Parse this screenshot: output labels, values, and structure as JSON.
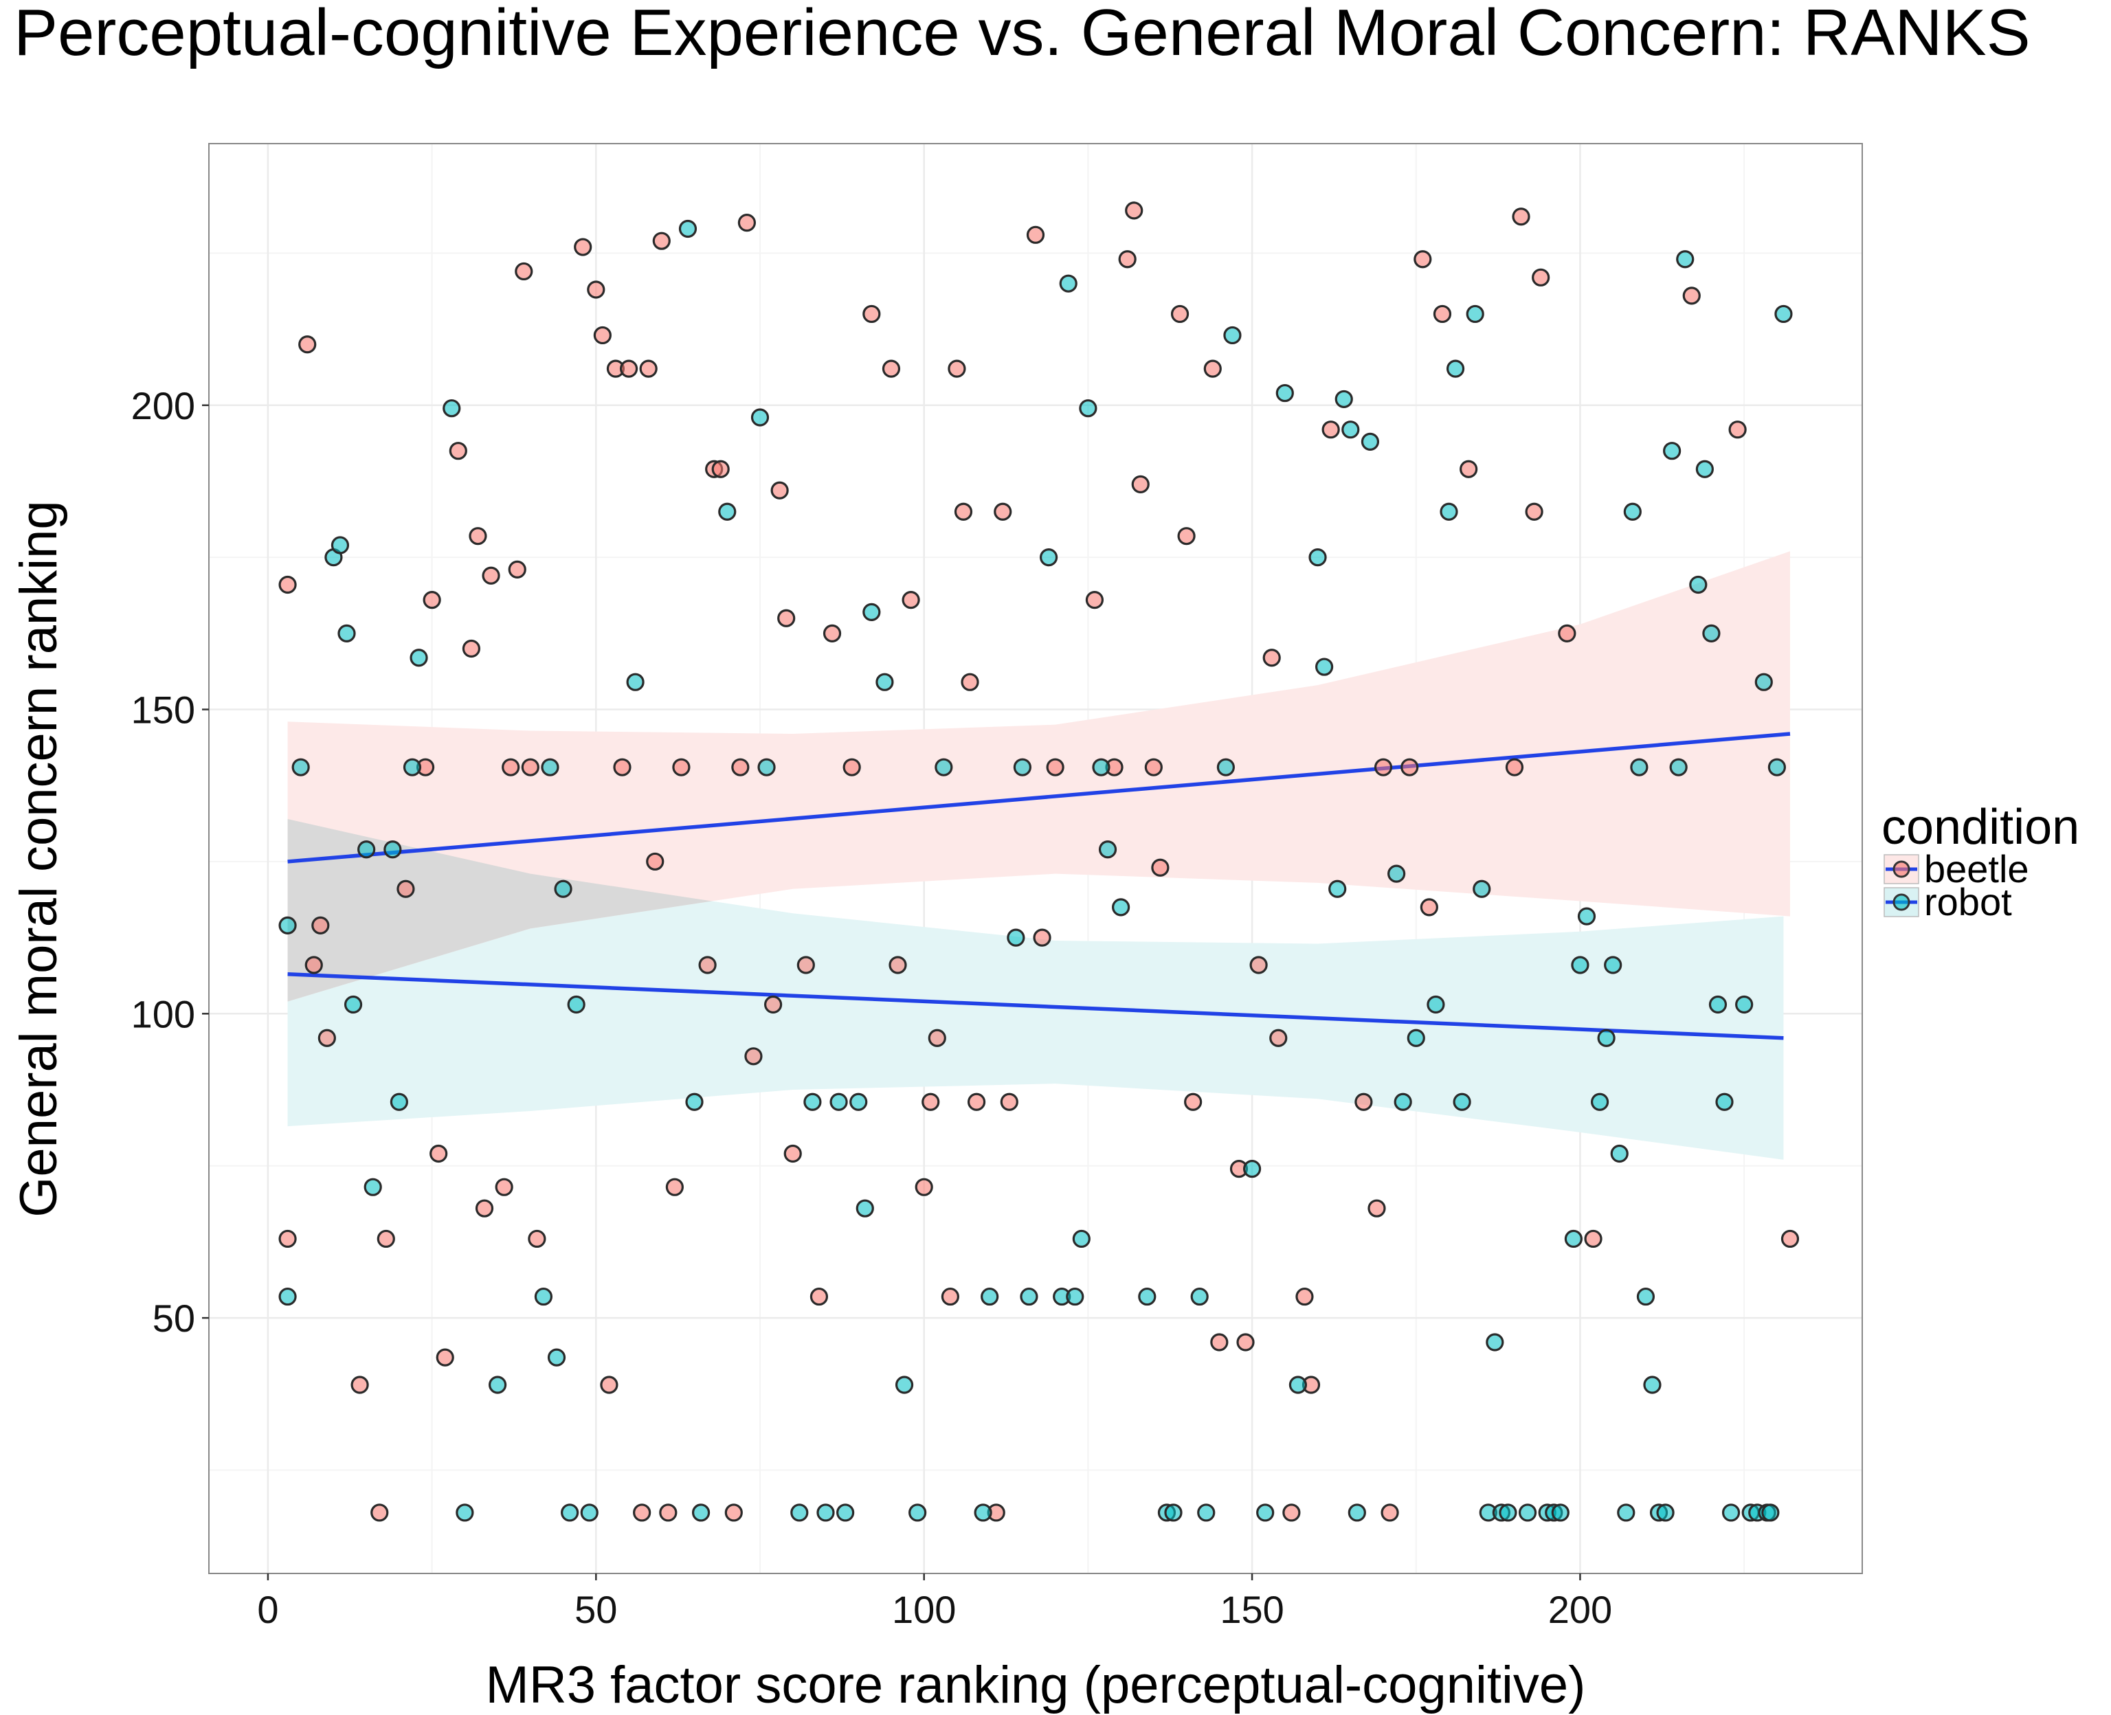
{
  "chart_data": {
    "type": "scatter",
    "title": "Perceptual-cognitive Experience vs. General Moral Concern: RANKS",
    "xlabel": "MR3 factor score ranking (perceptual-cognitive)",
    "ylabel": "General moral concern ranking",
    "xlim": [
      -9,
      243
    ],
    "ylim": [
      8,
      243
    ],
    "x_ticks": [
      0,
      50,
      100,
      150,
      200
    ],
    "y_ticks": [
      50,
      100,
      150,
      200
    ],
    "grid": true,
    "legend": {
      "title": "condition",
      "position": "right",
      "entries": [
        "beetle",
        "robot"
      ]
    },
    "colors": {
      "beetle": "#F8766D",
      "robot": "#00BFC4",
      "trend_line": "#2142E6",
      "panel_border": "#888888",
      "grid": "#EBEBEB",
      "overlap_band": "#D9D9D9"
    },
    "series": [
      {
        "name": "beetle",
        "points": [
          [
            3,
            170.5
          ],
          [
            3,
            63
          ],
          [
            6,
            210
          ],
          [
            7,
            108
          ],
          [
            8,
            114.5
          ],
          [
            9,
            96
          ],
          [
            14,
            39
          ],
          [
            17,
            18
          ],
          [
            18,
            63
          ],
          [
            21,
            120.5
          ],
          [
            24,
            140.5
          ],
          [
            25,
            168
          ],
          [
            26,
            77
          ],
          [
            27,
            43.5
          ],
          [
            29,
            192.5
          ],
          [
            31,
            160
          ],
          [
            32,
            178.5
          ],
          [
            33,
            68
          ],
          [
            34,
            172
          ],
          [
            36,
            71.5
          ],
          [
            37,
            140.5
          ],
          [
            38,
            173
          ],
          [
            39,
            222
          ],
          [
            40,
            140.5
          ],
          [
            41,
            63
          ],
          [
            48,
            226
          ],
          [
            50,
            219
          ],
          [
            51,
            211.5
          ],
          [
            52,
            39
          ],
          [
            53,
            206
          ],
          [
            55,
            206
          ],
          [
            54,
            140.5
          ],
          [
            57,
            18
          ],
          [
            58,
            206
          ],
          [
            59,
            125
          ],
          [
            60,
            227
          ],
          [
            61,
            18
          ],
          [
            62,
            71.5
          ],
          [
            63,
            140.5
          ],
          [
            67,
            108
          ],
          [
            68,
            189.5
          ],
          [
            69,
            189.5
          ],
          [
            71,
            18
          ],
          [
            72,
            140.5
          ],
          [
            73,
            230
          ],
          [
            74,
            93
          ],
          [
            77,
            101.5
          ],
          [
            78,
            186
          ],
          [
            79,
            165
          ],
          [
            80,
            77
          ],
          [
            82,
            108
          ],
          [
            84,
            53.5
          ],
          [
            86,
            162.5
          ],
          [
            89,
            140.5
          ],
          [
            92,
            215
          ],
          [
            95,
            206
          ],
          [
            96,
            108
          ],
          [
            98,
            168
          ],
          [
            100,
            71.5
          ],
          [
            101,
            85.5
          ],
          [
            102,
            96
          ],
          [
            104,
            53.5
          ],
          [
            105,
            206
          ],
          [
            106,
            182.5
          ],
          [
            107,
            154.5
          ],
          [
            108,
            85.5
          ],
          [
            111,
            18
          ],
          [
            112,
            182.5
          ],
          [
            113,
            85.5
          ],
          [
            118,
            112.5
          ],
          [
            117,
            228
          ],
          [
            120,
            140.5
          ],
          [
            126,
            168
          ],
          [
            129,
            140.5
          ],
          [
            131,
            224
          ],
          [
            132,
            232
          ],
          [
            133,
            187
          ],
          [
            135,
            140.5
          ],
          [
            136,
            124
          ],
          [
            139,
            215
          ],
          [
            140,
            178.5
          ],
          [
            141,
            85.5
          ],
          [
            144,
            206
          ],
          [
            145,
            46
          ],
          [
            148,
            74.5
          ],
          [
            149,
            46
          ],
          [
            151,
            108
          ],
          [
            153,
            158.5
          ],
          [
            154,
            96
          ],
          [
            156,
            18
          ],
          [
            158,
            53.5
          ],
          [
            159,
            39
          ],
          [
            162,
            196
          ],
          [
            167,
            85.5
          ],
          [
            169,
            68
          ],
          [
            170,
            140.5
          ],
          [
            171,
            18
          ],
          [
            174,
            140.5
          ],
          [
            176,
            224
          ],
          [
            177,
            117.5
          ],
          [
            179,
            215
          ],
          [
            183,
            189.5
          ],
          [
            190,
            140.5
          ],
          [
            191,
            231
          ],
          [
            193,
            182.5
          ],
          [
            194,
            221
          ],
          [
            198,
            162.5
          ],
          [
            202,
            63
          ],
          [
            217,
            218
          ],
          [
            224,
            196
          ],
          [
            232,
            63
          ]
        ]
      },
      {
        "name": "robot",
        "points": [
          [
            3,
            114.5
          ],
          [
            3,
            53.5
          ],
          [
            5,
            140.5
          ],
          [
            10,
            175
          ],
          [
            11,
            177
          ],
          [
            12,
            162.5
          ],
          [
            13,
            101.5
          ],
          [
            15,
            127
          ],
          [
            16,
            71.5
          ],
          [
            19,
            127
          ],
          [
            20,
            85.5
          ],
          [
            22,
            140.5
          ],
          [
            23,
            158.5
          ],
          [
            28,
            199.5
          ],
          [
            30,
            18
          ],
          [
            35,
            39
          ],
          [
            42,
            53.5
          ],
          [
            43,
            140.5
          ],
          [
            44,
            43.5
          ],
          [
            45,
            120.5
          ],
          [
            46,
            18
          ],
          [
            47,
            101.5
          ],
          [
            49,
            18
          ],
          [
            56,
            154.5
          ],
          [
            64,
            229
          ],
          [
            65,
            85.5
          ],
          [
            66,
            18
          ],
          [
            70,
            182.5
          ],
          [
            75,
            198
          ],
          [
            76,
            140.5
          ],
          [
            81,
            18
          ],
          [
            83,
            85.5
          ],
          [
            85,
            18
          ],
          [
            87,
            85.5
          ],
          [
            88,
            18
          ],
          [
            90,
            85.5
          ],
          [
            91,
            68
          ],
          [
            92,
            166
          ],
          [
            94,
            154.5
          ],
          [
            97,
            39
          ],
          [
            99,
            18
          ],
          [
            103,
            140.5
          ],
          [
            109,
            18
          ],
          [
            110,
            53.5
          ],
          [
            114,
            112.5
          ],
          [
            115,
            140.5
          ],
          [
            116,
            53.5
          ],
          [
            119,
            175
          ],
          [
            121,
            53.5
          ],
          [
            122,
            220
          ],
          [
            123,
            53.5
          ],
          [
            124,
            63
          ],
          [
            125,
            199.5
          ],
          [
            127,
            140.5
          ],
          [
            128,
            127
          ],
          [
            130,
            117.5
          ],
          [
            134,
            53.5
          ],
          [
            137,
            18
          ],
          [
            138,
            18
          ],
          [
            142,
            53.5
          ],
          [
            143,
            18
          ],
          [
            146,
            140.5
          ],
          [
            147,
            211.5
          ],
          [
            150,
            74.5
          ],
          [
            152,
            18
          ],
          [
            155,
            202
          ],
          [
            157,
            39
          ],
          [
            160,
            175
          ],
          [
            161,
            157
          ],
          [
            163,
            120.5
          ],
          [
            164,
            201
          ],
          [
            165,
            196
          ],
          [
            166,
            18
          ],
          [
            168,
            194
          ],
          [
            172,
            123
          ],
          [
            173,
            85.5
          ],
          [
            175,
            96
          ],
          [
            178,
            101.5
          ],
          [
            180,
            182.5
          ],
          [
            181,
            206
          ],
          [
            182,
            85.5
          ],
          [
            184,
            215
          ],
          [
            185,
            120.5
          ],
          [
            186,
            18
          ],
          [
            187,
            46
          ],
          [
            188,
            18
          ],
          [
            189,
            18
          ],
          [
            192,
            18
          ],
          [
            195,
            18
          ],
          [
            196,
            18
          ],
          [
            197,
            18
          ],
          [
            199,
            63
          ],
          [
            200,
            108
          ],
          [
            201,
            116
          ],
          [
            203,
            85.5
          ],
          [
            204,
            96
          ],
          [
            205,
            108
          ],
          [
            206,
            77
          ],
          [
            207,
            18
          ],
          [
            208,
            182.5
          ],
          [
            209,
            140.5
          ],
          [
            210,
            53.5
          ],
          [
            211,
            39
          ],
          [
            212,
            18
          ],
          [
            213,
            18
          ],
          [
            214,
            192.5
          ],
          [
            215,
            140.5
          ],
          [
            216,
            224
          ],
          [
            218,
            170.5
          ],
          [
            219,
            189.5
          ],
          [
            220,
            162.5
          ],
          [
            221,
            101.5
          ],
          [
            222,
            85.5
          ],
          [
            223,
            18
          ],
          [
            225,
            101.5
          ],
          [
            226,
            18
          ],
          [
            227,
            18
          ],
          [
            228,
            154.5
          ],
          [
            228.5,
            18
          ],
          [
            229,
            18
          ],
          [
            230,
            140.5
          ],
          [
            231,
            215
          ]
        ]
      }
    ],
    "trend_lines": [
      {
        "name": "beetle",
        "x": [
          3,
          232
        ],
        "y": [
          125,
          146
        ],
        "ci_upper": [
          [
            3,
            148
          ],
          [
            40,
            146.5
          ],
          [
            80,
            146
          ],
          [
            120,
            147.5
          ],
          [
            160,
            154
          ],
          [
            200,
            164
          ],
          [
            232,
            176
          ]
        ],
        "ci_lower": [
          [
            3,
            102
          ],
          [
            40,
            114
          ],
          [
            80,
            120.5
          ],
          [
            120,
            123
          ],
          [
            160,
            121.5
          ],
          [
            200,
            118.5
          ],
          [
            232,
            116
          ]
        ]
      },
      {
        "name": "robot",
        "x": [
          3,
          231
        ],
        "y": [
          106.5,
          96
        ],
        "ci_upper": [
          [
            3,
            132
          ],
          [
            40,
            123
          ],
          [
            80,
            116.5
          ],
          [
            120,
            112
          ],
          [
            160,
            111.5
          ],
          [
            200,
            113.5
          ],
          [
            231,
            116
          ]
        ],
        "ci_lower": [
          [
            3,
            81.5
          ],
          [
            40,
            84
          ],
          [
            80,
            87.5
          ],
          [
            120,
            88.5
          ],
          [
            160,
            86
          ],
          [
            200,
            80.5
          ],
          [
            231,
            76
          ]
        ]
      }
    ]
  }
}
